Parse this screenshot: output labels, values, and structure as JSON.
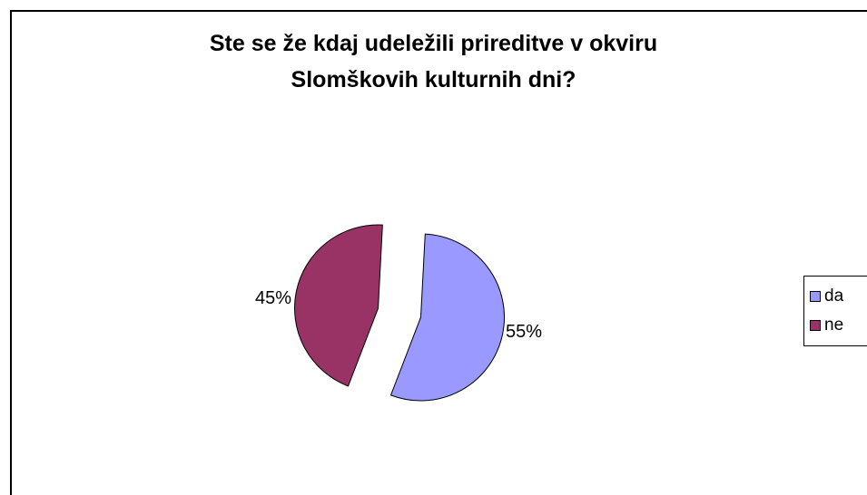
{
  "chart_data": {
    "type": "pie",
    "title": "Ste se že kdaj udeležili prireditve v okviru Slomškovih kulturnih dni?",
    "title_lines": [
      "Ste se že kdaj udeležili prireditve v okviru",
      "Slomškovih kulturnih dni?"
    ],
    "categories": [
      "da",
      "ne"
    ],
    "values": [
      55,
      45
    ],
    "labels": [
      "55%",
      "45%"
    ],
    "exploded": true,
    "colors": [
      "#9999ff",
      "#993366"
    ],
    "legend_position": "right"
  }
}
